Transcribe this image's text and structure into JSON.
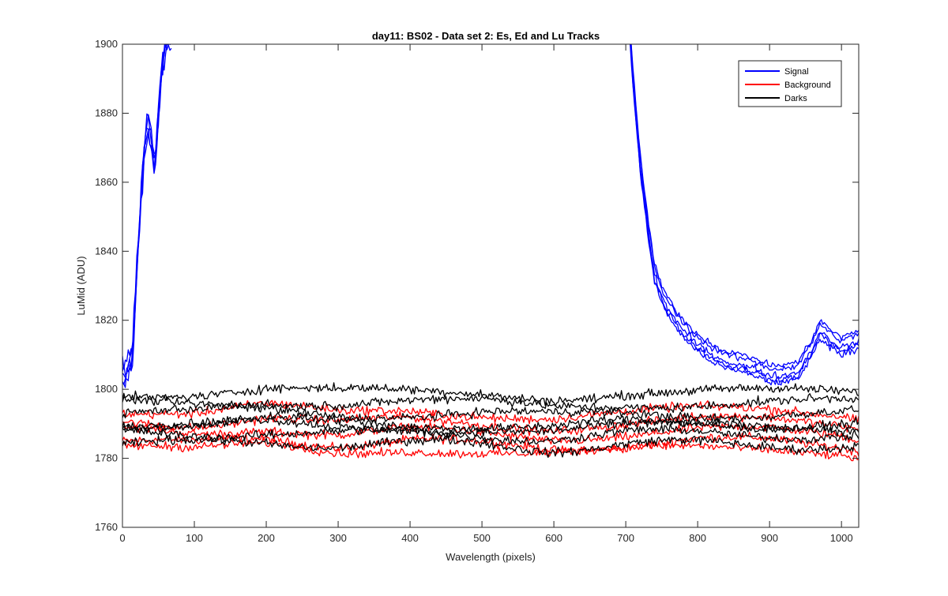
{
  "chart_data": {
    "type": "line",
    "title": "day11: BS02 - Data set 2: Es, Ed and Lu Tracks",
    "xlabel": "Wavelength (pixels)",
    "ylabel": "LuMid (ADU)",
    "xlim": [
      0,
      1024
    ],
    "ylim": [
      1760,
      1900
    ],
    "xticks": [
      0,
      100,
      200,
      300,
      400,
      500,
      600,
      700,
      800,
      900,
      1000
    ],
    "yticks": [
      1760,
      1780,
      1800,
      1820,
      1840,
      1860,
      1880,
      1900
    ],
    "grid": false,
    "legend_position": "top-right",
    "legend": [
      {
        "label": "Signal",
        "color": "#0000ff"
      },
      {
        "label": "Background",
        "color": "#ff0000"
      },
      {
        "label": "Darks",
        "color": "#000000"
      }
    ],
    "series": [
      {
        "name": "Signal",
        "color": "#0000ff",
        "x": [
          0,
          10,
          15,
          20,
          25,
          30,
          35,
          40,
          45,
          50,
          55,
          60,
          65,
          705,
          710,
          720,
          730,
          740,
          750,
          760,
          780,
          800,
          820,
          840,
          860,
          880,
          900,
          920,
          940,
          960,
          970,
          980,
          1000,
          1024
        ],
        "values": [
          1803,
          1806,
          1812,
          1835,
          1852,
          1868,
          1877,
          1872,
          1862,
          1880,
          1892,
          1900,
          1902,
          1905,
          1890,
          1865,
          1848,
          1833,
          1827,
          1823,
          1817,
          1813,
          1810,
          1808,
          1807,
          1806,
          1804,
          1804,
          1805,
          1812,
          1817,
          1815,
          1812,
          1814
        ]
      },
      {
        "name": "Background",
        "color": "#ff0000",
        "x": [
          0,
          100,
          200,
          300,
          400,
          500,
          600,
          700,
          800,
          900,
          1000,
          1024
        ],
        "values": [
          1789,
          1788,
          1790,
          1788,
          1789,
          1788,
          1787,
          1788,
          1789,
          1789,
          1788,
          1787
        ]
      },
      {
        "name": "Darks",
        "color": "#000000",
        "x": [
          0,
          100,
          200,
          300,
          400,
          500,
          600,
          700,
          800,
          900,
          1000,
          1024
        ],
        "values": [
          1790,
          1790,
          1791,
          1790,
          1790,
          1790,
          1789,
          1790,
          1790,
          1790,
          1790,
          1790
        ]
      }
    ]
  }
}
